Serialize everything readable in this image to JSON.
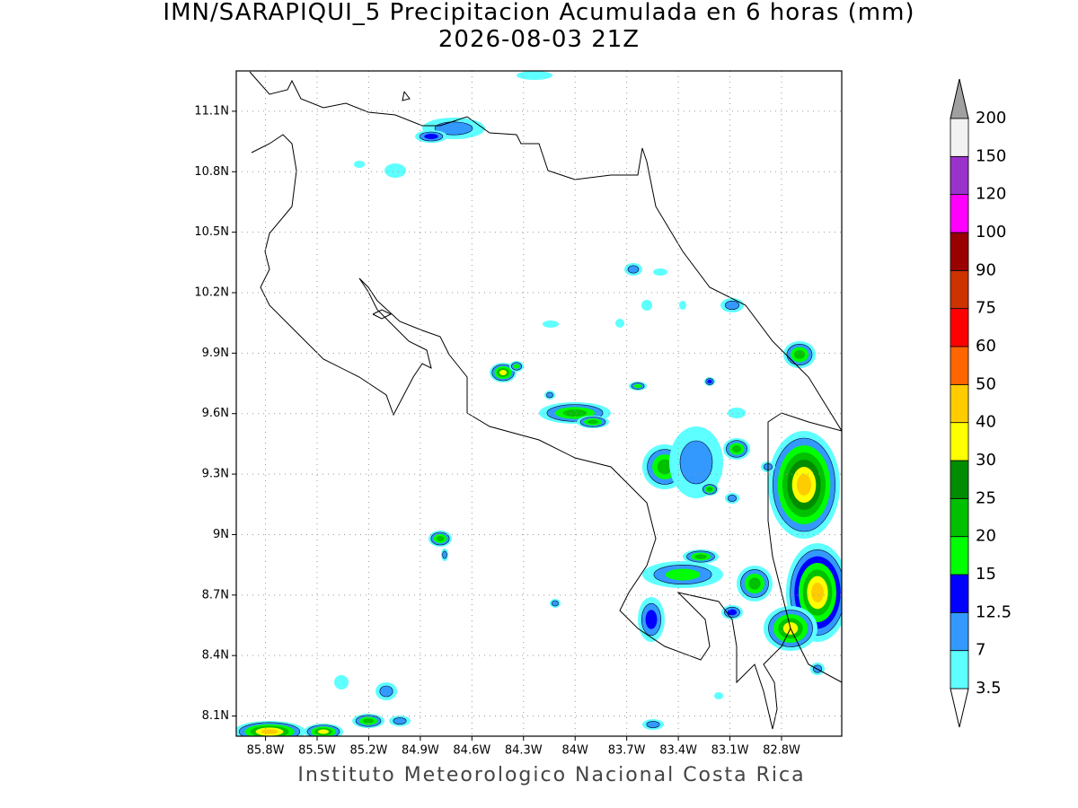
{
  "title": [
    "IMN/SARAPIQUI_5 Precipitacion Acumulada en 6 horas (mm)",
    "2026-08-03 21Z"
  ],
  "map": {
    "xlim": [
      -85.97,
      -82.45
    ],
    "ylim": [
      8.0,
      11.3
    ],
    "xticks": [
      {
        "value": -85.8,
        "label": "85.8W"
      },
      {
        "value": -85.5,
        "label": "85.5W"
      },
      {
        "value": -85.2,
        "label": "85.2W"
      },
      {
        "value": -84.9,
        "label": "84.9W"
      },
      {
        "value": -84.6,
        "label": "84.6W"
      },
      {
        "value": -84.3,
        "label": "84.3W"
      },
      {
        "value": -84.0,
        "label": "84W"
      },
      {
        "value": -83.7,
        "label": "83.7W"
      },
      {
        "value": -83.4,
        "label": "83.4W"
      },
      {
        "value": -83.1,
        "label": "83.1W"
      },
      {
        "value": -82.8,
        "label": "82.8W"
      }
    ],
    "yticks": [
      {
        "value": 8.1,
        "label": "8.1N"
      },
      {
        "value": 8.4,
        "label": "8.4N"
      },
      {
        "value": 8.7,
        "label": "8.7N"
      },
      {
        "value": 9.0,
        "label": "9N"
      },
      {
        "value": 9.3,
        "label": "9.3N"
      },
      {
        "value": 9.6,
        "label": "9.6N"
      },
      {
        "value": 9.9,
        "label": "9.9N"
      },
      {
        "value": 10.2,
        "label": "10.2N"
      },
      {
        "value": 10.5,
        "label": "10.5N"
      },
      {
        "value": 10.8,
        "label": "10.8N"
      },
      {
        "value": 11.1,
        "label": "11.1N"
      }
    ],
    "grid": true
  },
  "colorbar": {
    "levels": [
      3.5,
      7,
      12.5,
      15,
      20,
      25,
      30,
      40,
      50,
      60,
      75,
      90,
      100,
      120,
      150,
      200
    ],
    "colors": [
      "#5effff",
      "#3399ff",
      "#0000ff",
      "#00ff00",
      "#00c000",
      "#008c00",
      "#ffff00",
      "#ffcc00",
      "#ff6600",
      "#ff0000",
      "#cc3300",
      "#990000",
      "#ff00ff",
      "#9933cc",
      "#f2f2f2"
    ]
  },
  "footer": "Instituto Meteorologico Nacional Costa Rica"
}
